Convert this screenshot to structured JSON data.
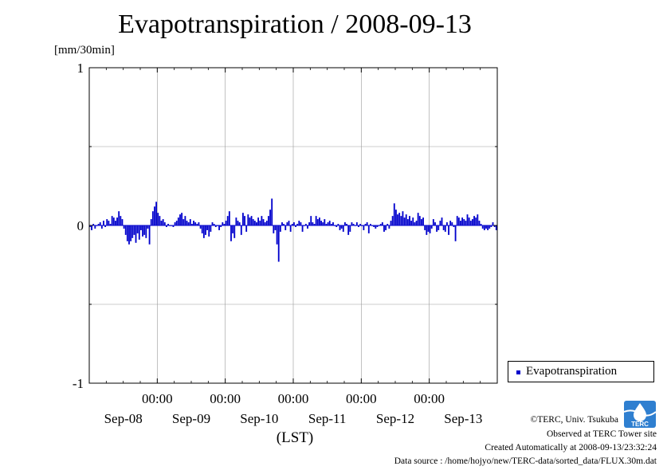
{
  "chart_data": {
    "type": "bar",
    "title": "Evapotranspiration / 2008-09-13",
    "ylabel": "[mm/30min]",
    "xlabel": "(LST)",
    "ylim": [
      -1,
      1
    ],
    "yticks": [
      "1",
      "0",
      "-1"
    ],
    "xticks_time": [
      "00:00",
      "00:00",
      "00:00",
      "00:00",
      "00:00"
    ],
    "xticks_date": [
      "Sep-08",
      "Sep-09",
      "Sep-10",
      "Sep-11",
      "Sep-12",
      "Sep-13"
    ],
    "grid": true,
    "legend_position": "right",
    "series": [
      {
        "name": "Evapotranspiration",
        "color": "#0000cc",
        "values": [
          -0.01,
          -0.03,
          0.01,
          -0.02,
          0.0,
          0.01,
          0.02,
          -0.02,
          0.03,
          -0.01,
          0.04,
          0.03,
          0.01,
          0.06,
          0.05,
          0.03,
          0.05,
          0.09,
          0.06,
          0.04,
          -0.02,
          -0.06,
          -0.1,
          -0.12,
          -0.1,
          -0.08,
          -0.06,
          -0.11,
          -0.05,
          -0.09,
          -0.03,
          -0.07,
          -0.06,
          -0.08,
          -0.02,
          -0.12,
          0.04,
          0.09,
          0.12,
          0.15,
          0.08,
          0.06,
          0.03,
          0.04,
          0.02,
          -0.01,
          0.01,
          0.0,
          0.0,
          -0.01,
          0.02,
          0.03,
          0.05,
          0.07,
          0.08,
          0.04,
          0.06,
          0.03,
          0.02,
          0.04,
          0.01,
          0.03,
          0.02,
          0.01,
          0.02,
          -0.02,
          -0.05,
          -0.08,
          -0.06,
          -0.03,
          -0.07,
          -0.04,
          0.02,
          0.01,
          -0.01,
          0.0,
          -0.03,
          -0.01,
          0.02,
          0.01,
          0.03,
          0.06,
          0.09,
          -0.1,
          -0.05,
          -0.08,
          0.05,
          0.03,
          0.02,
          -0.06,
          0.08,
          0.06,
          -0.04,
          0.07,
          0.05,
          0.06,
          0.04,
          0.03,
          0.02,
          0.05,
          0.03,
          0.06,
          0.04,
          0.02,
          0.03,
          0.06,
          0.1,
          0.17,
          -0.05,
          -0.03,
          -0.12,
          -0.23,
          -0.04,
          0.02,
          0.01,
          -0.03,
          0.02,
          0.03,
          -0.04,
          0.01,
          0.02,
          -0.01,
          0.01,
          0.03,
          0.02,
          -0.04,
          0.0,
          0.01,
          -0.02,
          0.02,
          0.06,
          0.02,
          0.01,
          0.06,
          0.04,
          0.05,
          0.03,
          0.02,
          0.04,
          0.01,
          0.02,
          0.03,
          0.01,
          0.02,
          0.0,
          -0.01,
          0.01,
          -0.03,
          -0.02,
          -0.04,
          0.02,
          0.01,
          -0.06,
          -0.04,
          0.02,
          0.01,
          0.0,
          0.02,
          -0.01,
          0.01,
          0.0,
          -0.03,
          0.01,
          0.02,
          -0.05,
          0.01,
          0.0,
          -0.01,
          -0.02,
          -0.01,
          0.0,
          0.01,
          0.02,
          -0.04,
          -0.03,
          0.01,
          -0.02,
          0.03,
          0.06,
          0.14,
          0.1,
          0.07,
          0.08,
          0.06,
          0.09,
          0.05,
          0.07,
          0.04,
          0.06,
          0.03,
          0.05,
          0.02,
          0.03,
          0.08,
          0.06,
          0.04,
          0.05,
          -0.03,
          -0.06,
          -0.04,
          -0.05,
          -0.02,
          0.04,
          0.02,
          -0.04,
          -0.03,
          0.03,
          0.05,
          -0.03,
          -0.04,
          0.02,
          -0.06,
          0.03,
          0.02,
          -0.01,
          -0.1,
          0.06,
          0.05,
          0.03,
          0.05,
          0.04,
          0.03,
          0.07,
          0.05,
          0.03,
          0.04,
          0.06,
          0.05,
          0.07,
          0.03,
          0.01,
          -0.02,
          -0.03,
          -0.02,
          -0.03,
          -0.02,
          -0.01,
          0.02,
          -0.01,
          -0.03
        ]
      }
    ]
  },
  "footer": {
    "copyright": "©TERC, Univ. Tsukuba",
    "site": "Observed at TERC Tower site",
    "created": "Created Automatically at 2008-09-13/23:32:24",
    "source": "Data source : /home/hojyo/new/TERC-data/sorted_data/FLUX.30m.dat"
  },
  "logo": {
    "text": "TERC",
    "color": "#2f7fd0"
  }
}
